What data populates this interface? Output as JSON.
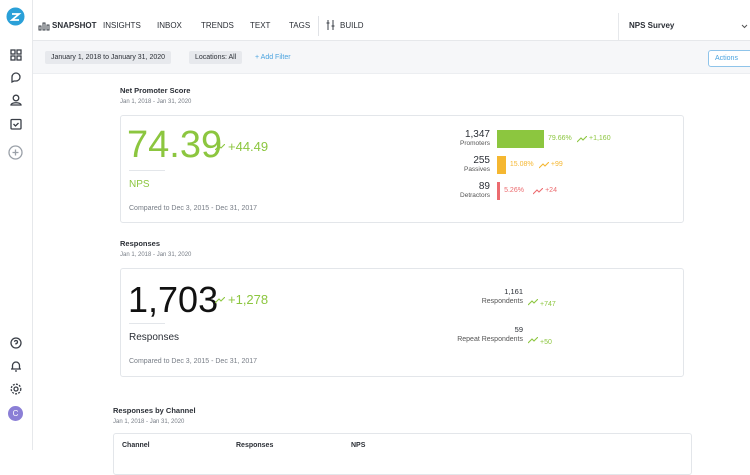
{
  "nav": {
    "items": [
      "SNAPSHOT",
      "INSIGHTS",
      "INBOX",
      "TRENDS",
      "TEXT",
      "TAGS"
    ],
    "build": "BUILD",
    "survey": "NPS Survey"
  },
  "filters": {
    "date_range": "January 1, 2018 to January 31, 2020",
    "locations": "Locations: All",
    "add": "+ Add Filter",
    "actions": "Actions"
  },
  "sidebar": {
    "avatar": "C"
  },
  "nps": {
    "title": "Net Promoter Score",
    "date": "Jan 1, 2018 - Jan 31, 2020",
    "score": "74.39",
    "change": "+44.49",
    "label": "NPS",
    "compare": "Compared to Dec 3, 2015 - Dec 31, 2017",
    "breakdown": {
      "counts": [
        "1,347",
        "255",
        "89"
      ],
      "labels": [
        "Promoters",
        "Passives",
        "Detractors"
      ],
      "values": [
        79.66,
        15.08,
        5.26
      ],
      "value_labels": [
        "79.66%",
        "15.08%",
        "5.26%"
      ],
      "changes": [
        "+1,160",
        "+99",
        "+24"
      ],
      "colors": [
        "#8cc63f",
        "#f5b731",
        "#ec6b6f"
      ]
    }
  },
  "responses": {
    "title": "Responses",
    "date": "Jan 1, 2018 - Jan 31, 2020",
    "total": "1,703",
    "change": "+1,278",
    "label": "Responses",
    "compare": "Compared to Dec 3, 2015 - Dec 31, 2017",
    "stats": [
      {
        "count": "1,161",
        "label": "Respondents",
        "change": "+747"
      },
      {
        "count": "59",
        "label": "Repeat Respondents",
        "change": "+50"
      }
    ]
  },
  "channel": {
    "title": "Responses by Channel",
    "date": "Jan 1, 2018 - Jan 31, 2020",
    "headers": [
      "Channel",
      "Responses",
      "NPS"
    ]
  }
}
